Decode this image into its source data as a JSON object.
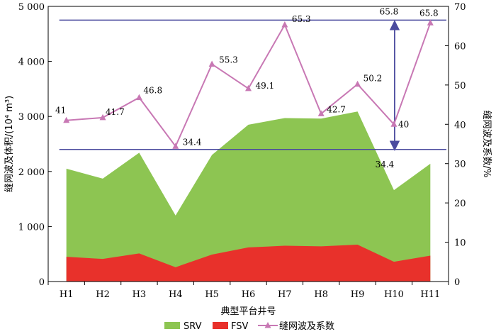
{
  "chart_data": {
    "type": "area",
    "categories": [
      "H1",
      "H2",
      "H3",
      "H4",
      "H5",
      "H6",
      "H7",
      "H8",
      "H9",
      "H10",
      "H11"
    ],
    "xlabel": "典型平台井号",
    "ylabel_left": "缝网波及体积/(10⁴ m³)",
    "ylabel_right": "缝网波及系数/%",
    "ylim_left": [
      0,
      5000
    ],
    "ylim_right": [
      0,
      70
    ],
    "yticks_left": [
      "0",
      "1 000",
      "2 000",
      "3 000",
      "4 000",
      "5 000"
    ],
    "yticks_right": [
      "0",
      "10",
      "20",
      "30",
      "40",
      "50",
      "60",
      "70"
    ],
    "series": [
      {
        "name": "SRV",
        "axis": "left",
        "kind": "area",
        "color": "#8dc552",
        "values": [
          2050,
          1870,
          2340,
          1200,
          2300,
          2850,
          2970,
          2960,
          3090,
          1660,
          2140
        ]
      },
      {
        "name": "FSV",
        "axis": "left",
        "kind": "area",
        "color": "#e8312b",
        "values": [
          450,
          410,
          510,
          260,
          490,
          620,
          650,
          640,
          670,
          360,
          470
        ]
      },
      {
        "name": "缝网波及系数",
        "axis": "right",
        "kind": "line",
        "color": "#c878b4",
        "values": [
          41,
          41.7,
          46.8,
          34.4,
          55.3,
          49.1,
          65.3,
          42.7,
          50.2,
          40,
          65.8
        ],
        "labels": [
          "41",
          "41.7",
          "46.8",
          "34.4",
          "55.3",
          "49.1",
          "65.3",
          "42.7",
          "50.2",
          "40",
          "65.8"
        ]
      }
    ],
    "reference_lines": [
      {
        "axis": "right",
        "value": 66.5,
        "color": "#4a4a9e"
      },
      {
        "axis": "right",
        "value": 33.6,
        "color": "#4a4a9e"
      }
    ],
    "range_arrow": {
      "category_position": 9.5,
      "top_label": "65.8",
      "bottom_label": "34.4",
      "top": 66.5,
      "bottom": 33.6
    },
    "legend": {
      "placement": "bottom",
      "items": [
        "SRV",
        "FSV",
        "缝网波及系数"
      ]
    },
    "grid": false
  }
}
